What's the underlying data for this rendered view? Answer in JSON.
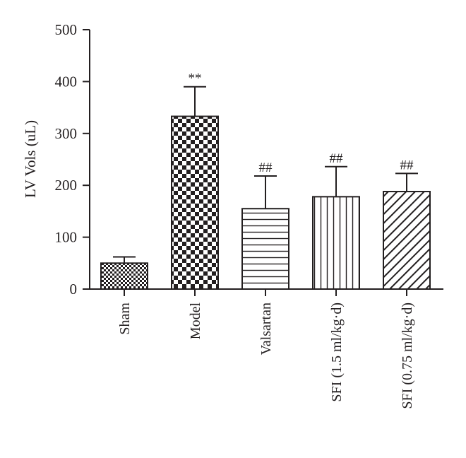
{
  "chart_data": {
    "type": "bar",
    "title": "",
    "xlabel": "",
    "ylabel": "LV Vols (uL)",
    "ylim": [
      0,
      500
    ],
    "yticks": [
      0,
      100,
      200,
      300,
      400,
      500
    ],
    "grid": false,
    "categories": [
      "Sham",
      "Model",
      "Valsartan",
      "SFI (1.5 ml/kg·d)",
      "SFI (0.75 ml/kg·d)"
    ],
    "values": [
      50,
      333,
      155,
      178,
      188
    ],
    "error": [
      12,
      57,
      63,
      58,
      35
    ],
    "annotations": [
      "",
      "**",
      "##",
      "##",
      "##"
    ],
    "patterns": [
      "fine-checker",
      "checker",
      "horizontal-lines",
      "vertical-lines",
      "diagonal-lines"
    ],
    "colors": {
      "ink": "#231f20",
      "background": "#ffffff"
    }
  }
}
